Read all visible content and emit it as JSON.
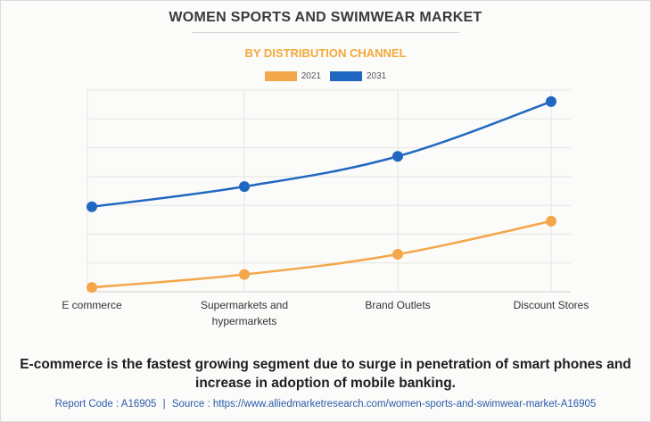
{
  "header": {
    "title": "WOMEN SPORTS AND SWIMWEAR MARKET",
    "subtitle": "BY DISTRIBUTION CHANNEL"
  },
  "colors": {
    "series_2021": "#f4a64a",
    "series_2031": "#1f67c0"
  },
  "chart_data": {
    "type": "line",
    "title": "WOMEN SPORTS AND SWIMWEAR MARKET",
    "subtitle": "BY DISTRIBUTION CHANNEL",
    "categories": [
      "E commerce",
      "Supermarkets and hypermarkets",
      "Brand Outlets",
      "Discount Stores"
    ],
    "category_lines": [
      [
        "E commerce"
      ],
      [
        "Supermarkets and",
        "hypermarkets"
      ],
      [
        "Brand Outlets"
      ],
      [
        "Discount Stores"
      ]
    ],
    "series": [
      {
        "name": "2021",
        "values": [
          0.3,
          1.2,
          2.6,
          4.9
        ]
      },
      {
        "name": "2031",
        "values": [
          5.9,
          7.3,
          9.4,
          13.2
        ]
      }
    ],
    "ylim": [
      0,
      14
    ],
    "grid_lines": 7,
    "xlabel": "",
    "ylabel": "",
    "legend": "top-center",
    "smooth": true
  },
  "caption": "E-commerce is the fastest growing segment due to surge in penetration of smart phones and increase in adoption of mobile banking.",
  "footer": {
    "report_code": "Report Code : A16905",
    "separator": "|",
    "source": "Source : https://www.alliedmarketresearch.com/women-sports-and-swimwear-market-A16905"
  }
}
